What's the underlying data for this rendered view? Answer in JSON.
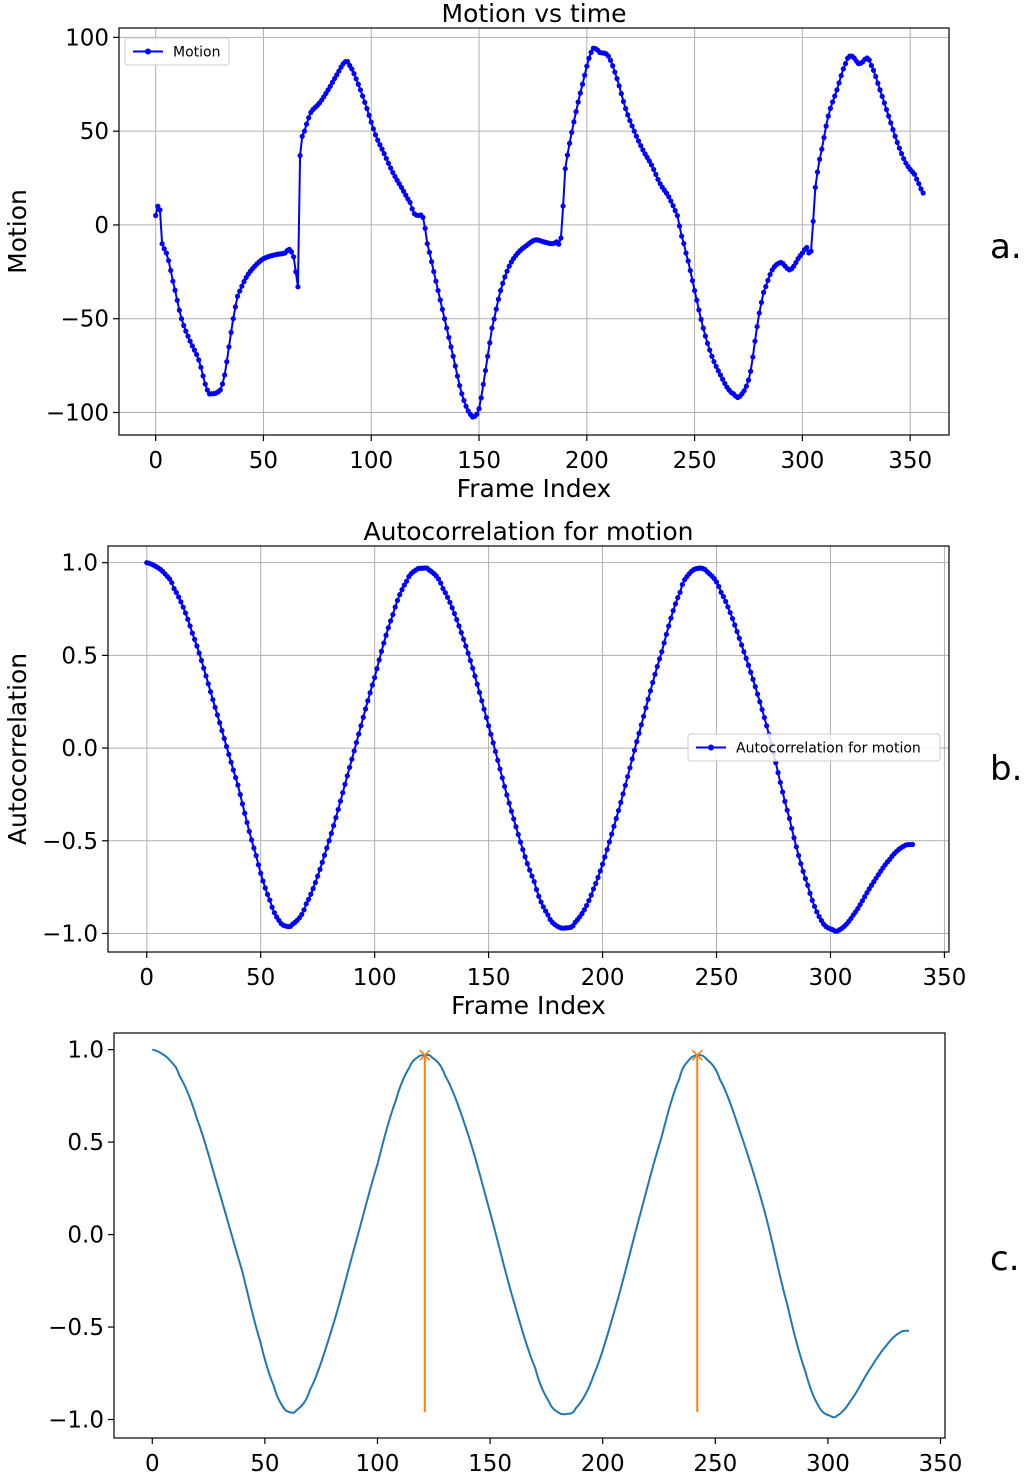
{
  "panel_letters": [
    "a.",
    "b.",
    "c."
  ],
  "chart_data": [
    {
      "type": "line",
      "title": "Motion vs time",
      "xlabel": "Frame Index",
      "ylabel": "Motion",
      "xlim": [
        -17,
        368
      ],
      "ylim": [
        -112,
        105
      ],
      "xticks": [
        0,
        50,
        100,
        150,
        200,
        250,
        300,
        350
      ],
      "yticks": [
        -100,
        -50,
        0,
        50,
        100
      ],
      "grid": true,
      "legend": "top-left",
      "series": [
        {
          "name": "Motion",
          "color": "#0000ff",
          "marker": "dot",
          "anchors": [
            [
              0,
              5
            ],
            [
              1,
              10
            ],
            [
              2,
              8
            ],
            [
              3,
              -10
            ],
            [
              5,
              -15
            ],
            [
              8,
              -30
            ],
            [
              12,
              -50
            ],
            [
              16,
              -62
            ],
            [
              20,
              -72
            ],
            [
              24,
              -88
            ],
            [
              26,
              -90
            ],
            [
              30,
              -88
            ],
            [
              32,
              -80
            ],
            [
              34,
              -65
            ],
            [
              36,
              -50
            ],
            [
              38,
              -38
            ],
            [
              42,
              -28
            ],
            [
              46,
              -22
            ],
            [
              50,
              -18
            ],
            [
              55,
              -16
            ],
            [
              60,
              -15
            ],
            [
              62,
              -13
            ],
            [
              64,
              -17
            ],
            [
              65,
              -25
            ],
            [
              66,
              -33
            ],
            [
              67,
              37
            ],
            [
              69,
              50
            ],
            [
              72,
              60
            ],
            [
              76,
              65
            ],
            [
              80,
              72
            ],
            [
              84,
              80
            ],
            [
              88,
              87
            ],
            [
              90,
              85
            ],
            [
              94,
              75
            ],
            [
              98,
              62
            ],
            [
              102,
              48
            ],
            [
              106,
              38
            ],
            [
              110,
              28
            ],
            [
              114,
              20
            ],
            [
              118,
              12
            ],
            [
              120,
              6
            ],
            [
              122,
              5
            ],
            [
              124,
              4
            ],
            [
              126,
              -10
            ],
            [
              130,
              -30
            ],
            [
              134,
              -50
            ],
            [
              138,
              -70
            ],
            [
              142,
              -90
            ],
            [
              146,
              -101
            ],
            [
              148,
              -102
            ],
            [
              150,
              -98
            ],
            [
              152,
              -85
            ],
            [
              154,
              -70
            ],
            [
              156,
              -55
            ],
            [
              160,
              -35
            ],
            [
              164,
              -22
            ],
            [
              168,
              -15
            ],
            [
              172,
              -11
            ],
            [
              176,
              -8
            ],
            [
              180,
              -9
            ],
            [
              184,
              -10
            ],
            [
              186,
              -9
            ],
            [
              188,
              -7
            ],
            [
              190,
              30
            ],
            [
              194,
              55
            ],
            [
              198,
              75
            ],
            [
              202,
              92
            ],
            [
              204,
              94
            ],
            [
              206,
              92
            ],
            [
              210,
              90
            ],
            [
              214,
              78
            ],
            [
              218,
              62
            ],
            [
              222,
              50
            ],
            [
              226,
              40
            ],
            [
              230,
              32
            ],
            [
              234,
              22
            ],
            [
              238,
              15
            ],
            [
              242,
              5
            ],
            [
              244,
              -6
            ],
            [
              246,
              -15
            ],
            [
              250,
              -35
            ],
            [
              254,
              -55
            ],
            [
              258,
              -70
            ],
            [
              262,
              -80
            ],
            [
              266,
              -88
            ],
            [
              268,
              -90
            ],
            [
              270,
              -92
            ],
            [
              272,
              -90
            ],
            [
              274,
              -86
            ],
            [
              276,
              -78
            ],
            [
              278,
              -62
            ],
            [
              280,
              -47
            ],
            [
              282,
              -36
            ],
            [
              286,
              -24
            ],
            [
              290,
              -20
            ],
            [
              292,
              -22
            ],
            [
              294,
              -24
            ],
            [
              296,
              -22
            ],
            [
              298,
              -18
            ],
            [
              300,
              -15
            ],
            [
              302,
              -12
            ],
            [
              304,
              -14
            ],
            [
              306,
              20
            ],
            [
              308,
              35
            ],
            [
              312,
              58
            ],
            [
              316,
              72
            ],
            [
              320,
              86
            ],
            [
              322,
              90
            ],
            [
              324,
              89
            ],
            [
              326,
              86
            ],
            [
              328,
              87
            ],
            [
              330,
              89
            ],
            [
              332,
              85
            ],
            [
              336,
              72
            ],
            [
              340,
              58
            ],
            [
              344,
              44
            ],
            [
              348,
              33
            ],
            [
              352,
              27
            ],
            [
              354,
              22
            ],
            [
              356,
              17
            ]
          ]
        }
      ]
    },
    {
      "type": "line",
      "title": "Autocorrelation for motion",
      "xlabel": "Frame Index",
      "ylabel": "Autocorrelation",
      "xlim": [
        -17,
        352
      ],
      "ylim": [
        -1.1,
        1.09
      ],
      "xticks": [
        0,
        50,
        100,
        150,
        200,
        250,
        300,
        350
      ],
      "yticks": [
        -1.0,
        -0.5,
        0.0,
        0.5,
        1.0
      ],
      "grid": true,
      "legend": "center-right",
      "series": [
        {
          "name": "Autocorrelation for motion",
          "color": "#0000ff",
          "marker": "dot",
          "anchors": [
            [
              0,
              1.0
            ],
            [
              4,
              0.98
            ],
            [
              8,
              0.94
            ],
            [
              12,
              0.86
            ],
            [
              20,
              0.62
            ],
            [
              30,
              0.22
            ],
            [
              40,
              -0.2
            ],
            [
              48,
              -0.58
            ],
            [
              54,
              -0.82
            ],
            [
              58,
              -0.93
            ],
            [
              61,
              -0.96
            ],
            [
              64,
              -0.95
            ],
            [
              70,
              -0.84
            ],
            [
              80,
              -0.5
            ],
            [
              90,
              -0.06
            ],
            [
              100,
              0.38
            ],
            [
              108,
              0.72
            ],
            [
              114,
              0.9
            ],
            [
              118,
              0.96
            ],
            [
              121,
              0.97
            ],
            [
              124,
              0.96
            ],
            [
              130,
              0.86
            ],
            [
              140,
              0.55
            ],
            [
              150,
              0.12
            ],
            [
              160,
              -0.34
            ],
            [
              170,
              -0.72
            ],
            [
              176,
              -0.9
            ],
            [
              180,
              -0.96
            ],
            [
              184,
              -0.97
            ],
            [
              188,
              -0.94
            ],
            [
              196,
              -0.76
            ],
            [
              206,
              -0.38
            ],
            [
              216,
              0.08
            ],
            [
              226,
              0.52
            ],
            [
              234,
              0.84
            ],
            [
              238,
              0.94
            ],
            [
              242,
              0.97
            ],
            [
              246,
              0.95
            ],
            [
              252,
              0.84
            ],
            [
              262,
              0.52
            ],
            [
              272,
              0.12
            ],
            [
              282,
              -0.38
            ],
            [
              290,
              -0.74
            ],
            [
              296,
              -0.93
            ],
            [
              301,
              -0.98
            ],
            [
              304,
              -0.98
            ],
            [
              310,
              -0.9
            ],
            [
              318,
              -0.74
            ],
            [
              326,
              -0.6
            ],
            [
              332,
              -0.53
            ],
            [
              336,
              -0.52
            ]
          ]
        }
      ]
    },
    {
      "type": "line",
      "title": "",
      "xlabel": "",
      "ylabel": "",
      "xlim": [
        -17,
        352
      ],
      "ylim": [
        -1.1,
        1.09
      ],
      "xticks": [
        0,
        50,
        100,
        150,
        200,
        250,
        300,
        350
      ],
      "yticks": [
        -1.0,
        -0.5,
        0.0,
        0.5,
        1.0
      ],
      "grid": false,
      "legend": "none",
      "series": [
        {
          "color": "#1f77b4",
          "marker": "none",
          "anchors": [
            [
              0,
              1.0
            ],
            [
              4,
              0.98
            ],
            [
              8,
              0.94
            ],
            [
              12,
              0.86
            ],
            [
              20,
              0.62
            ],
            [
              30,
              0.22
            ],
            [
              40,
              -0.2
            ],
            [
              48,
              -0.58
            ],
            [
              54,
              -0.82
            ],
            [
              58,
              -0.93
            ],
            [
              61,
              -0.96
            ],
            [
              64,
              -0.95
            ],
            [
              70,
              -0.84
            ],
            [
              80,
              -0.5
            ],
            [
              90,
              -0.06
            ],
            [
              100,
              0.38
            ],
            [
              108,
              0.72
            ],
            [
              114,
              0.9
            ],
            [
              118,
              0.96
            ],
            [
              121,
              0.97
            ],
            [
              124,
              0.96
            ],
            [
              130,
              0.86
            ],
            [
              140,
              0.55
            ],
            [
              150,
              0.12
            ],
            [
              160,
              -0.34
            ],
            [
              170,
              -0.72
            ],
            [
              176,
              -0.9
            ],
            [
              180,
              -0.96
            ],
            [
              184,
              -0.97
            ],
            [
              188,
              -0.94
            ],
            [
              196,
              -0.76
            ],
            [
              206,
              -0.38
            ],
            [
              216,
              0.08
            ],
            [
              226,
              0.52
            ],
            [
              234,
              0.84
            ],
            [
              238,
              0.94
            ],
            [
              242,
              0.97
            ],
            [
              246,
              0.95
            ],
            [
              252,
              0.84
            ],
            [
              262,
              0.52
            ],
            [
              272,
              0.12
            ],
            [
              282,
              -0.38
            ],
            [
              290,
              -0.74
            ],
            [
              296,
              -0.93
            ],
            [
              301,
              -0.98
            ],
            [
              304,
              -0.98
            ],
            [
              310,
              -0.9
            ],
            [
              318,
              -0.74
            ],
            [
              326,
              -0.6
            ],
            [
              332,
              -0.53
            ],
            [
              336,
              -0.52
            ]
          ]
        }
      ],
      "peaks": {
        "color": "#ff7f0e",
        "marker": "x",
        "points": [
          [
            121,
            0.97
          ],
          [
            242,
            0.97
          ]
        ],
        "line_bottom": -0.96
      }
    }
  ]
}
